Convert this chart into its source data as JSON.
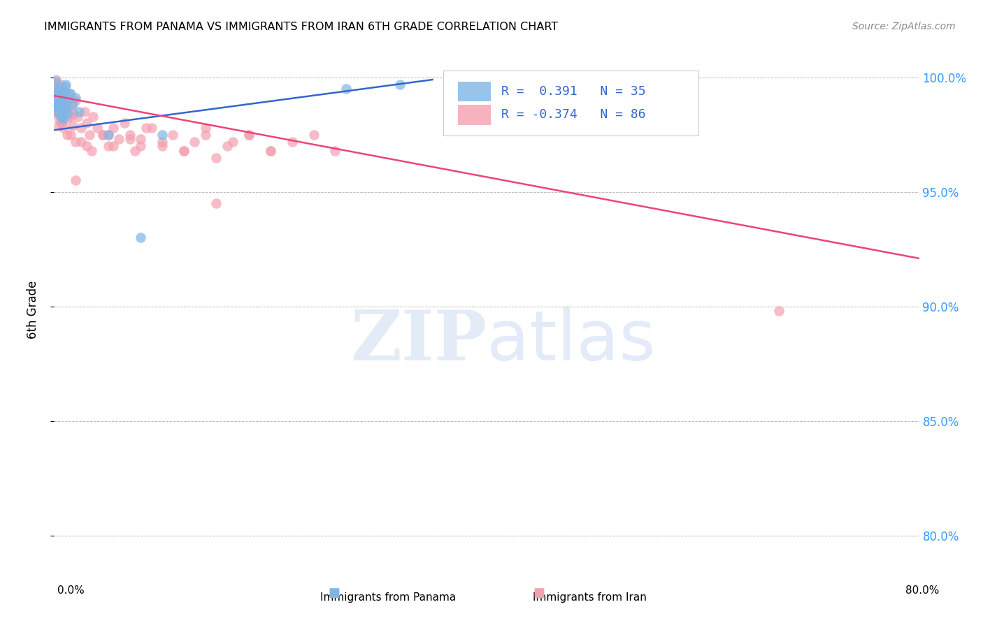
{
  "title": "IMMIGRANTS FROM PANAMA VS IMMIGRANTS FROM IRAN 6TH GRADE CORRELATION CHART",
  "source": "Source: ZipAtlas.com",
  "ylabel": "6th Grade",
  "ylabel_ticks": [
    "100.0%",
    "95.0%",
    "90.0%",
    "85.0%",
    "80.0%"
  ],
  "ytick_vals": [
    1.0,
    0.95,
    0.9,
    0.85,
    0.8
  ],
  "xlim": [
    0.0,
    0.8
  ],
  "ylim": [
    0.785,
    1.012
  ],
  "panama_color": "#7EB6E8",
  "iran_color": "#F4A0B0",
  "panama_line_color": "#3366CC",
  "iran_line_color": "#EE4477",
  "legend_r_panama": "R =  0.391",
  "legend_n_panama": "N = 35",
  "legend_r_iran": "R = -0.374",
  "legend_n_iran": "N = 86",
  "background_color": "#FFFFFF",
  "grid_color": "#BBBBBB",
  "panama_scatter_x": [
    0.001,
    0.002,
    0.002,
    0.003,
    0.003,
    0.004,
    0.005,
    0.005,
    0.006,
    0.007,
    0.008,
    0.009,
    0.01,
    0.011,
    0.012,
    0.013,
    0.015,
    0.017,
    0.02,
    0.023,
    0.01,
    0.008,
    0.006,
    0.004,
    0.003,
    0.002,
    0.007,
    0.009,
    0.011,
    0.014,
    0.05,
    0.08,
    0.1,
    0.27,
    0.32
  ],
  "panama_scatter_y": [
    0.99,
    0.985,
    0.998,
    0.993,
    0.987,
    0.995,
    0.988,
    0.992,
    0.983,
    0.991,
    0.989,
    0.994,
    0.986,
    0.997,
    0.99,
    0.984,
    0.993,
    0.988,
    0.991,
    0.985,
    0.996,
    0.982,
    0.99,
    0.987,
    0.994,
    0.988,
    0.983,
    0.991,
    0.986,
    0.993,
    0.975,
    0.93,
    0.975,
    0.995,
    0.997
  ],
  "iran_scatter_x": [
    0.001,
    0.001,
    0.002,
    0.002,
    0.002,
    0.003,
    0.003,
    0.003,
    0.004,
    0.004,
    0.004,
    0.005,
    0.005,
    0.005,
    0.006,
    0.006,
    0.006,
    0.007,
    0.007,
    0.007,
    0.008,
    0.008,
    0.009,
    0.009,
    0.01,
    0.01,
    0.011,
    0.012,
    0.013,
    0.014,
    0.015,
    0.016,
    0.017,
    0.018,
    0.02,
    0.022,
    0.025,
    0.028,
    0.03,
    0.033,
    0.036,
    0.04,
    0.045,
    0.05,
    0.055,
    0.06,
    0.065,
    0.07,
    0.075,
    0.08,
    0.09,
    0.1,
    0.11,
    0.12,
    0.13,
    0.14,
    0.15,
    0.165,
    0.18,
    0.2,
    0.015,
    0.025,
    0.035,
    0.045,
    0.055,
    0.07,
    0.085,
    0.1,
    0.12,
    0.14,
    0.16,
    0.18,
    0.2,
    0.22,
    0.24,
    0.26,
    0.003,
    0.007,
    0.012,
    0.02,
    0.03,
    0.05,
    0.08,
    0.02,
    0.15,
    0.67
  ],
  "iran_scatter_y": [
    0.997,
    0.988,
    0.993,
    0.984,
    0.999,
    0.991,
    0.985,
    0.996,
    0.988,
    0.993,
    0.979,
    0.994,
    0.987,
    0.981,
    0.99,
    0.984,
    0.997,
    0.988,
    0.993,
    0.98,
    0.991,
    0.985,
    0.988,
    0.978,
    0.993,
    0.984,
    0.987,
    0.982,
    0.99,
    0.985,
    0.983,
    0.988,
    0.979,
    0.984,
    0.99,
    0.983,
    0.978,
    0.985,
    0.98,
    0.975,
    0.983,
    0.978,
    0.975,
    0.97,
    0.978,
    0.973,
    0.98,
    0.975,
    0.968,
    0.973,
    0.978,
    0.97,
    0.975,
    0.968,
    0.972,
    0.978,
    0.965,
    0.972,
    0.975,
    0.968,
    0.975,
    0.972,
    0.968,
    0.975,
    0.97,
    0.973,
    0.978,
    0.972,
    0.968,
    0.975,
    0.97,
    0.975,
    0.968,
    0.972,
    0.975,
    0.968,
    0.985,
    0.98,
    0.975,
    0.972,
    0.97,
    0.975,
    0.97,
    0.955,
    0.945,
    0.898
  ],
  "panama_trend_x": [
    0.0,
    0.35
  ],
  "panama_trend_y": [
    0.977,
    0.999
  ],
  "iran_trend_x": [
    0.0,
    0.8
  ],
  "iran_trend_y": [
    0.992,
    0.921
  ]
}
